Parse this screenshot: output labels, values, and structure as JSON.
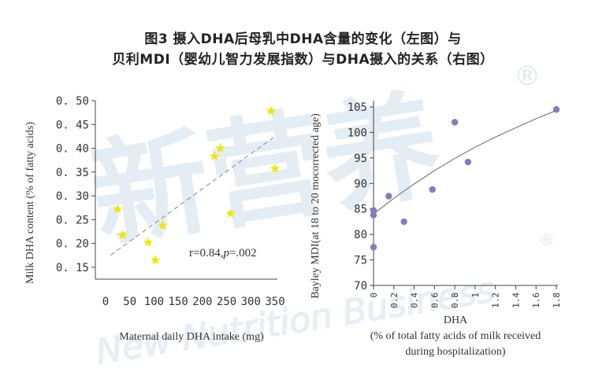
{
  "title_line1": "图3 摄入DHA后母乳中DHA含量的变化（左图）与",
  "title_line2": "贝利MDI（婴幼儿智力发展指数）与DHA摄入的关系（右图）",
  "watermark": {
    "main": "新营养",
    "sub": "New Nutrition Business",
    "mark": "®"
  },
  "colors": {
    "left_points": "#f2e600",
    "right_points": "#8b78bd",
    "axis": "#444444",
    "trend": "#888888",
    "watermark": "#cfe0ec"
  },
  "chart_data": [
    {
      "type": "scatter",
      "xlabel": "Maternal daily DHA intake (mg)",
      "ylabel": "Milk DHA content (% of fatty acids)",
      "annotation_r": "r=0.84,",
      "annotation_p": "p",
      "annotation_pval": "=.002",
      "xlim": [
        0,
        350
      ],
      "ylim": [
        0.125,
        0.5
      ],
      "xticks": [
        "0",
        "50",
        "100",
        "150",
        "200",
        "250",
        "300",
        "350"
      ],
      "yticks": [
        "0. 50",
        "0. 45",
        "0. 40",
        "0. 35",
        "0. 30",
        "0. 25",
        "0. 20",
        "0. 15"
      ],
      "points": [
        {
          "x": 25,
          "y": 0.272
        },
        {
          "x": 35,
          "y": 0.218
        },
        {
          "x": 88,
          "y": 0.202
        },
        {
          "x": 103,
          "y": 0.165
        },
        {
          "x": 118,
          "y": 0.238
        },
        {
          "x": 225,
          "y": 0.383
        },
        {
          "x": 237,
          "y": 0.4
        },
        {
          "x": 258,
          "y": 0.263
        },
        {
          "x": 342,
          "y": 0.478
        },
        {
          "x": 350,
          "y": 0.357
        }
      ],
      "trendline": {
        "style": "dashed",
        "x": [
          10,
          350
        ],
        "y": [
          0.175,
          0.425
        ]
      },
      "marker": "star"
    },
    {
      "type": "scatter",
      "xlabel": "DHA",
      "xlabel_line2": "(% of total fatty acids of milk received",
      "xlabel_line3": "during hospitalization)",
      "ylabel": "Bayley MDI(at 18 to 20 mocorrected age)",
      "xlim": [
        0,
        1.8
      ],
      "ylim": [
        70,
        105
      ],
      "xticks": [
        "0",
        "0.2",
        "0.4",
        "0.6",
        "0.8",
        "1",
        "1.2",
        "1.4",
        "1.6",
        "1.8"
      ],
      "yticks": [
        "105",
        "100",
        "95",
        "90",
        "85",
        "80",
        "75",
        "70"
      ],
      "points": [
        {
          "x": 0.0,
          "y": 77.5
        },
        {
          "x": 0.0,
          "y": 84.7
        },
        {
          "x": 0.0,
          "y": 83.8
        },
        {
          "x": 0.15,
          "y": 87.5
        },
        {
          "x": 0.3,
          "y": 82.5
        },
        {
          "x": 0.58,
          "y": 88.8
        },
        {
          "x": 0.8,
          "y": 102.0
        },
        {
          "x": 0.93,
          "y": 94.2
        },
        {
          "x": 1.8,
          "y": 104.5
        }
      ],
      "trendline": {
        "style": "solid",
        "x": [
          0,
          0.2,
          0.4,
          0.6,
          0.8,
          1.0,
          1.2,
          1.4,
          1.6,
          1.8
        ],
        "y": [
          84.0,
          87.1,
          89.9,
          92.5,
          94.9,
          97.1,
          99.1,
          100.9,
          102.7,
          104.3
        ]
      },
      "marker": "circle"
    }
  ]
}
